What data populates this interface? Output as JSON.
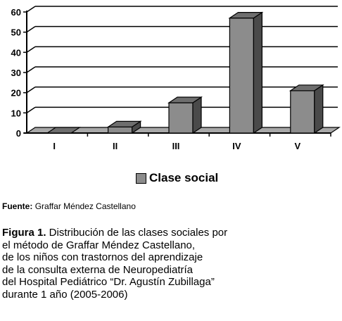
{
  "chart_data": {
    "type": "bar",
    "categories": [
      "I",
      "II",
      "III",
      "IV",
      "V"
    ],
    "values": [
      0,
      3,
      15,
      57,
      21
    ],
    "ylim": [
      0,
      60
    ],
    "yticks": [
      0,
      10,
      20,
      30,
      40,
      50,
      60
    ],
    "grid": true,
    "legend": "Clase social",
    "legend_position": "bottom",
    "bar_color": "#8c8c8c"
  },
  "source": {
    "label": "Fuente:",
    "text": "Graffar Méndez Castellano"
  },
  "caption": {
    "label": "Figura 1.",
    "line1_rest": " Distribución de las clases sociales por",
    "lines": [
      "el método de Graffar Méndez Castellano,",
      "de los niños con trastornos del aprendizaje",
      "de la consulta externa de Neuropediatría",
      "del Hospital Pediátrico “Dr. Agustín Zubillaga”",
      "durante 1 año (2005-2006)"
    ]
  }
}
